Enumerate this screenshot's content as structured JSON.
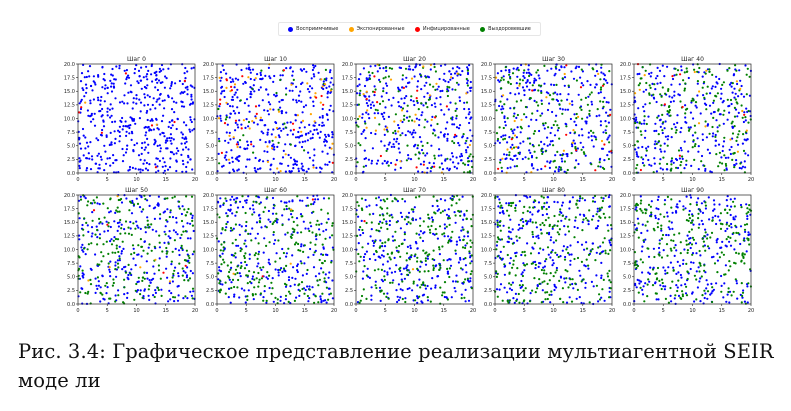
{
  "chart_data": {
    "type": "scatter",
    "xlim": [
      0,
      20
    ],
    "ylim": [
      0,
      20
    ],
    "x_ticks": [
      "0",
      "5",
      "10",
      "15",
      "20"
    ],
    "y_ticks": [
      "0.0",
      "2.5",
      "5.0",
      "7.5",
      "10.0",
      "12.5",
      "15.0",
      "17.5",
      "20.0"
    ],
    "grid": false,
    "legend_position": "top-center",
    "legend": [
      {
        "label": "Восприимчивые",
        "color": "#0000ff"
      },
      {
        "label": "Экспонированные",
        "color": "#ffa500"
      },
      {
        "label": "Инфицированные",
        "color": "#ff0000"
      },
      {
        "label": "Выздоровевшие",
        "color": "#008000"
      }
    ],
    "panels": [
      {
        "title": "Шаг 0",
        "counts": {
          "susceptible": 480,
          "exposed": 2,
          "infected": 8,
          "recovered": 0
        }
      },
      {
        "title": "Шаг 10",
        "counts": {
          "susceptible": 395,
          "exposed": 45,
          "infected": 22,
          "recovered": 28
        }
      },
      {
        "title": "Шаг 20",
        "counts": {
          "susceptible": 330,
          "exposed": 30,
          "infected": 15,
          "recovered": 115
        }
      },
      {
        "title": "Шаг 30",
        "counts": {
          "susceptible": 300,
          "exposed": 22,
          "infected": 13,
          "recovered": 155
        }
      },
      {
        "title": "Шаг 40",
        "counts": {
          "susceptible": 280,
          "exposed": 14,
          "infected": 8,
          "recovered": 188
        }
      },
      {
        "title": "Шаг 50",
        "counts": {
          "susceptible": 270,
          "exposed": 6,
          "infected": 4,
          "recovered": 210
        }
      },
      {
        "title": "Шаг 60",
        "counts": {
          "susceptible": 262,
          "exposed": 3,
          "infected": 2,
          "recovered": 223
        }
      },
      {
        "title": "Шаг 70",
        "counts": {
          "susceptible": 258,
          "exposed": 1,
          "infected": 1,
          "recovered": 230
        }
      },
      {
        "title": "Шаг 80",
        "counts": {
          "susceptible": 256,
          "exposed": 0,
          "infected": 0,
          "recovered": 234
        }
      },
      {
        "title": "Шаг 90",
        "counts": {
          "susceptible": 255,
          "exposed": 0,
          "infected": 0,
          "recovered": 235
        }
      }
    ]
  },
  "caption": "Рис. 3.4: Графическое представление реализации мультиагентной SEIR моде ли"
}
